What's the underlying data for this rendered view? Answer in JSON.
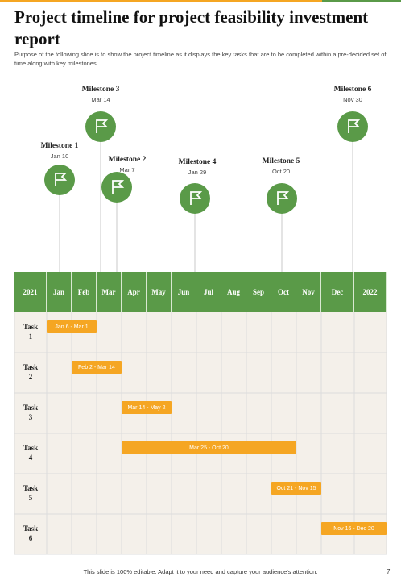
{
  "header": {
    "title": "Project timeline for project feasibility investment report",
    "subtitle": "Purpose of the following slide is to show the project timeline as it displays the key tasks that are to be completed within a pre-decided set of time along with key milestones"
  },
  "milestones": [
    {
      "name": "Milestone 1",
      "date": "Jan 10"
    },
    {
      "name": "Milestone 2",
      "date": "Mar 7"
    },
    {
      "name": "Milestone 3",
      "date": "Mar 14"
    },
    {
      "name": "Milestone 4",
      "date": "Jan 29"
    },
    {
      "name": "Milestone 5",
      "date": "Oct 20"
    },
    {
      "name": "Milestone 6",
      "date": "Nov 30"
    }
  ],
  "table": {
    "columns": [
      "2021",
      "Jan",
      "Feb",
      "Mar",
      "Apr",
      "May",
      "Jun",
      "Jul",
      "Aug",
      "Sep",
      "Oct",
      "Nov",
      "Dec",
      "2022"
    ],
    "rows": [
      {
        "task": "Task 1",
        "bar": "Jan 6 - Mar 1"
      },
      {
        "task": "Task 2",
        "bar": "Feb 2 - Mar 14"
      },
      {
        "task": "Task 3",
        "bar": "Mar 14 - May 2"
      },
      {
        "task": "Task 4",
        "bar": "Mar 25 - Oct 20"
      },
      {
        "task": "Task 5",
        "bar": "Oct 21 - Nov 15"
      },
      {
        "task": "Task 6",
        "bar": "Nov 16 - Dec 20"
      }
    ]
  },
  "footer": {
    "note": "This slide is 100% editable. Adapt it to your need and capture your audience's attention.",
    "page": "7"
  }
}
